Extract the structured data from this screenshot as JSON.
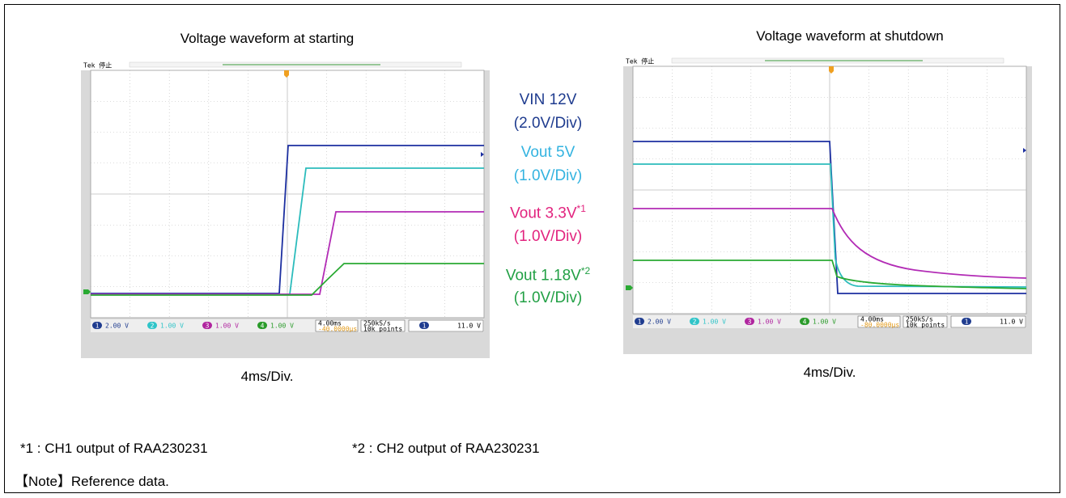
{
  "left_panel": {
    "title": "Voltage waveform at starting",
    "timebase": "4ms/Div.",
    "scope": {
      "status": "Tek 停止",
      "channels": [
        {
          "number": "1",
          "scale": "2.00 V"
        },
        {
          "number": "2",
          "scale": "1.00 V"
        },
        {
          "number": "3",
          "scale": "1.00 V"
        },
        {
          "number": "4",
          "scale": "1.00 V"
        }
      ],
      "horizontal": "4.00ms",
      "trigger_position": "-40.0000µs",
      "sample_rate": "250kS/s",
      "record_length": "10k points",
      "trigger_channel": "1",
      "trigger_level": "11.0 V"
    }
  },
  "right_panel": {
    "title": "Voltage waveform at shutdown",
    "timebase": "4ms/Div.",
    "scope": {
      "status": "Tek 停止",
      "channels": [
        {
          "number": "1",
          "scale": "2.00 V"
        },
        {
          "number": "2",
          "scale": "1.00 V"
        },
        {
          "number": "3",
          "scale": "1.00 V"
        },
        {
          "number": "4",
          "scale": "1.00 V"
        }
      ],
      "horizontal": "4.00ms",
      "trigger_position": "-80.0000µs",
      "sample_rate": "250kS/s",
      "record_length": "10k points",
      "trigger_channel": "1",
      "trigger_level": "11.0 V"
    }
  },
  "legend": [
    {
      "name": "VIN 12V",
      "scale": "(2.0V/Div)",
      "color": "#1f3c8f"
    },
    {
      "name": "Vout 5V",
      "scale": "(1.0V/Div)",
      "color": "#33b3e0"
    },
    {
      "name": "Vout 3.3V",
      "note": "*1",
      "scale": "(1.0V/Div)",
      "color": "#e2237e"
    },
    {
      "name": "Vout 1.18V",
      "note": "*2",
      "scale": "(1.0V/Div)",
      "color": "#22a045"
    }
  ],
  "footnotes": [
    "*1 : CH1 output of RAA230231",
    "*2 : CH2 output of RAA230231"
  ],
  "note": "【Note】Reference data."
}
